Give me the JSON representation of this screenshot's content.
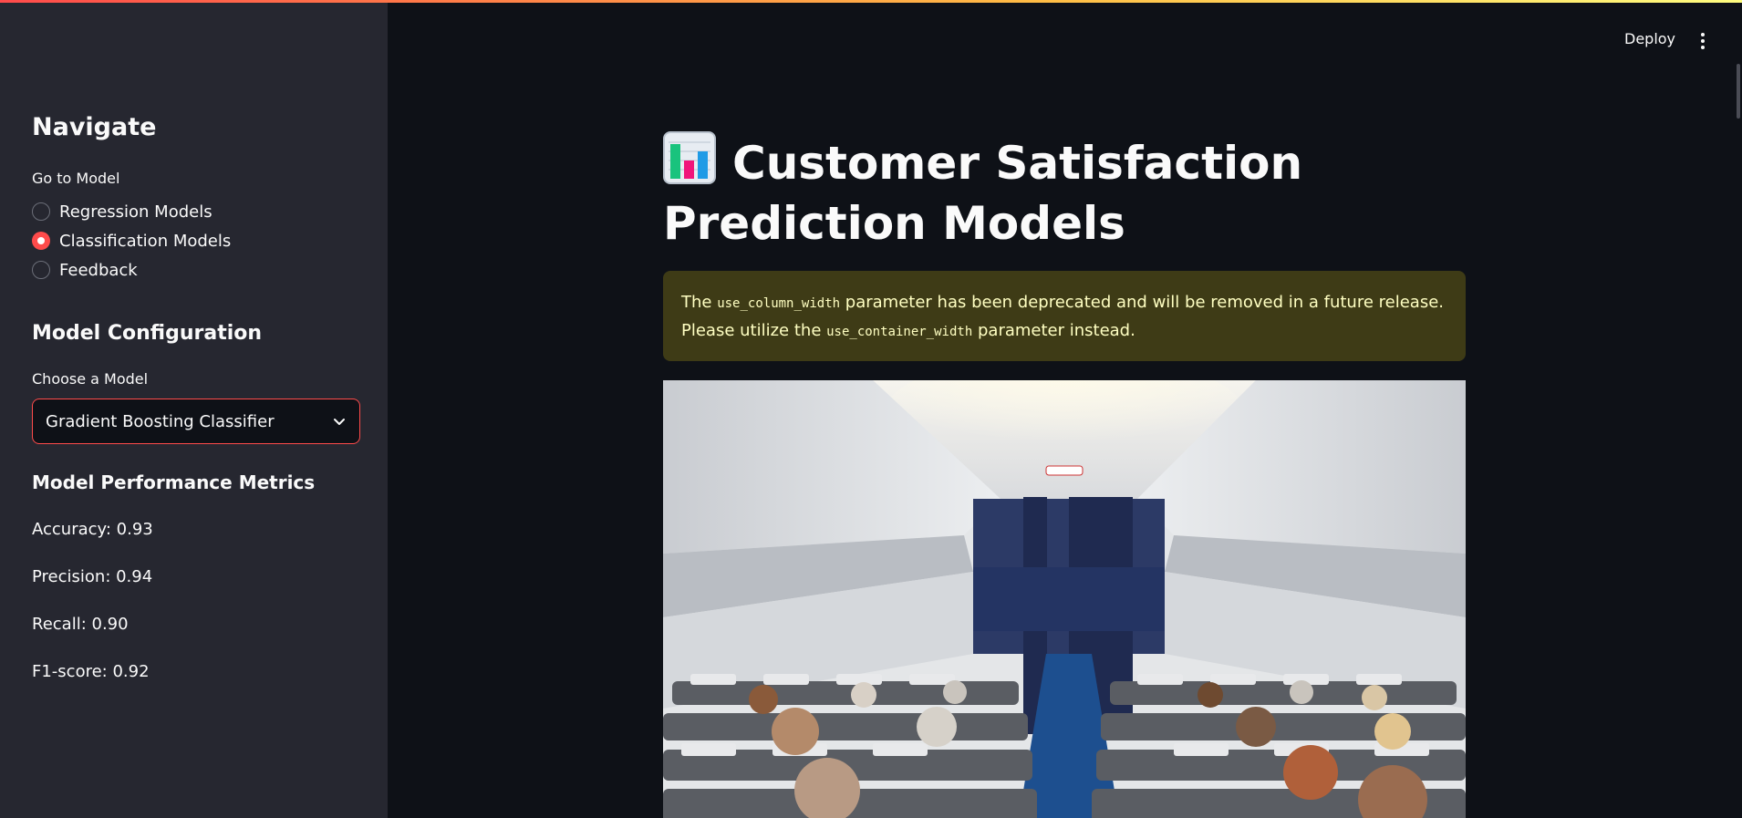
{
  "sidebar": {
    "nav_title": "Navigate",
    "go_to_label": "Go to Model",
    "radio_options": [
      "Regression Models",
      "Classification Models",
      "Feedback"
    ],
    "radio_selected": "Classification Models",
    "config_title": "Model Configuration",
    "choose_label": "Choose a Model",
    "select_value": "Gradient Boosting Classifier",
    "metrics_title": "Model Performance Metrics",
    "metrics": [
      "Accuracy: 0.93",
      "Precision: 0.94",
      "Recall: 0.90",
      "F1-score: 0.92"
    ]
  },
  "header": {
    "deploy_label": "Deploy",
    "menu_icon": "kebab-menu-icon"
  },
  "main": {
    "title_icon": "bar-chart-emoji-icon",
    "title": "Customer Satisfaction Prediction Models",
    "warning": {
      "part1": "The ",
      "code1": "use_column_width",
      "part2": " parameter has been deprecated and will be removed in a future release. Please utilize the ",
      "code2": "use_container_width",
      "part3": " parameter instead."
    },
    "image_alt": "airplane-cabin-image"
  },
  "colors": {
    "accent": "#ff4b4b",
    "sidebar_bg": "#262730",
    "main_bg": "#0e1117",
    "warning_bg": "#3e3b16",
    "warning_text": "#ffffc2"
  }
}
